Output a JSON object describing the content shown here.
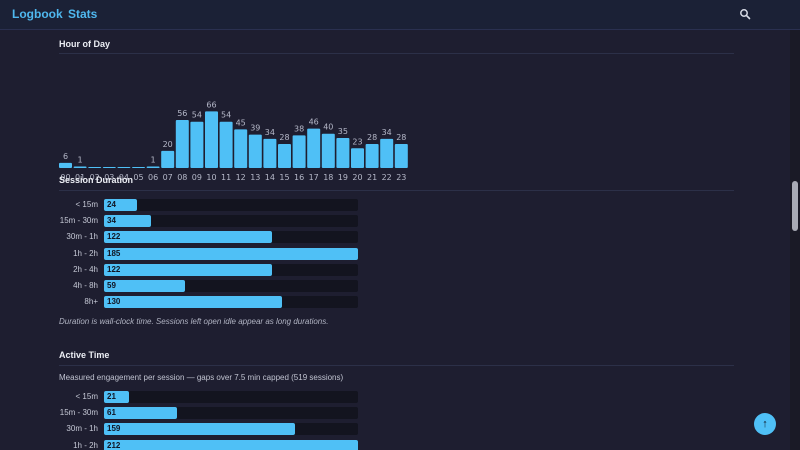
{
  "nav": {
    "logbook_label": "Logbook",
    "stats_label": "Stats",
    "search_icon": "search-icon",
    "theme_icon": "moon-icon"
  },
  "colors": {
    "accent": "#4fc0f6",
    "background": "#1e1e30",
    "navbar": "#1b2136",
    "track": "#13141f"
  },
  "hour_of_day": {
    "title": "Hour of Day",
    "chart_data": {
      "type": "bar",
      "title": "Hour of Day",
      "xlabel": "",
      "ylabel": "",
      "categories": [
        "00",
        "01",
        "02",
        "03",
        "04",
        "05",
        "06",
        "07",
        "08",
        "09",
        "10",
        "11",
        "12",
        "13",
        "14",
        "15",
        "16",
        "17",
        "18",
        "19",
        "20",
        "21",
        "22",
        "23"
      ],
      "values": [
        6,
        1,
        0,
        0,
        0,
        0,
        1,
        20,
        56,
        54,
        66,
        54,
        45,
        39,
        34,
        28,
        38,
        46,
        40,
        35,
        23,
        28,
        34,
        28
      ],
      "value_labels": [
        "6",
        "1",
        "",
        "",
        "",
        "",
        "1",
        "20",
        "56",
        "54",
        "66",
        "54",
        "45",
        "39",
        "34",
        "28",
        "38",
        "46",
        "40",
        "35",
        "23",
        "28",
        "34",
        "28"
      ],
      "ylim": [
        0,
        56
      ],
      "grid": false
    }
  },
  "session_duration": {
    "title": "Session Duration",
    "note": "Duration is wall-clock time. Sessions left open idle appear as long durations.",
    "max": 185,
    "rows": [
      {
        "label": "< 15m",
        "value": 24
      },
      {
        "label": "15m - 30m",
        "value": 34
      },
      {
        "label": "30m - 1h",
        "value": 122
      },
      {
        "label": "1h - 2h",
        "value": 185
      },
      {
        "label": "2h - 4h",
        "value": 122
      },
      {
        "label": "4h - 8h",
        "value": 59
      },
      {
        "label": "8h+",
        "value": 130
      }
    ]
  },
  "active_time": {
    "title": "Active Time",
    "subtitle": "Measured engagement per session — gaps over 7.5 min capped (519 sessions)",
    "max": 212,
    "rows": [
      {
        "label": "< 15m",
        "value": 21
      },
      {
        "label": "15m - 30m",
        "value": 61
      },
      {
        "label": "30m - 1h",
        "value": 159
      },
      {
        "label": "1h - 2h",
        "value": 212
      }
    ]
  },
  "scroll_top": {
    "label": "↑"
  }
}
